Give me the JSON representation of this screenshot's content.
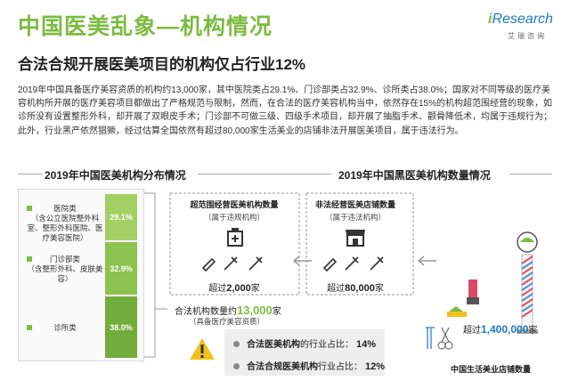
{
  "header": {
    "title": "中国医美乱象—机构情况",
    "subtitle": "合法合规开展医美项目的机构仅占行业12%"
  },
  "logo": {
    "brand_prefix": "i",
    "brand_main": "Research",
    "brand_cn": "艾瑞咨询"
  },
  "intro": {
    "paragraph": "2019年中国具备医疗美容资质的机构约13,000家，其中医院类占29.1%、门诊部类占32.9%、诊所类占38.0%；国家对不同等级的医疗美容机构所开展的医疗美容项目都做出了严格规范与限制，然而，在合法的医疗美容机构当中，依然存在15%的机构超范围经营的现象，如诊所没有设置整形外科，却开展了双眼皮手术；门诊部不可做三级、四级手术项目，却开展了抽脂手术、颧骨降低术，均属于违规行为；此外，行业黑产依然猖獗，经过估算全国依然有超过80,000家生活美业的店铺非法开展医美项目，属于违法行为。"
  },
  "left_section": {
    "title": "2019年中国医美机构分布情况",
    "categories": [
      {
        "label": "医院类",
        "sub": "（含公立医院整外科室、整形外科医院、医疗美容医院）",
        "pct_text": "29.1%",
        "value": 29.1
      },
      {
        "label": "门诊部类",
        "sub": "（含整形外科、皮肤美容）",
        "pct_text": "32.9%",
        "value": 32.9
      },
      {
        "label": "诊所类",
        "sub": "",
        "pct_text": "38.0%",
        "value": 38.0
      }
    ]
  },
  "middle": {
    "over_scope": {
      "title": "超范围经营医美机构数量",
      "note": "（属于违规机构）",
      "count_prefix": "超过",
      "count_value": "2,000",
      "count_unit": "家"
    },
    "illegal": {
      "title": "非法经营医美店铺数量",
      "note": "（属于违法机构）",
      "count_prefix": "超过",
      "count_value": "80,000",
      "count_unit": "家"
    },
    "legal": {
      "prefix": "合法机构数量约",
      "count_value": "13,000",
      "count_unit": "家",
      "note": "（具备医疗美容资质）"
    }
  },
  "stats": [
    {
      "bold": "合法医美机构",
      "rest": "的行业占比：",
      "value": "14%"
    },
    {
      "bold": "合法合规医美机构",
      "rest": "行业占比：",
      "value": "12%"
    }
  ],
  "right_section": {
    "title": "2019年中国黑医美机构数量情况",
    "beauty": {
      "prefix": "超过",
      "count_value": "1,400,000",
      "count_unit": "家",
      "caption": "中国生活美业店铺数量"
    }
  },
  "colors": {
    "green": "#7dbb42",
    "bar_light": "#a3d064",
    "bar_mid": "#8cc24f",
    "bar_dark": "#72ac3a",
    "accent_blue": "#1c7bbf",
    "warning_yellow": "#f1c21b"
  },
  "chart_data": {
    "type": "bar",
    "stacked": true,
    "orientation": "vertical",
    "title": "2019年中国医美机构分布情况",
    "categories": [
      "医院类",
      "门诊部类",
      "诊所类"
    ],
    "values": [
      29.1,
      32.9,
      38.0
    ],
    "unit": "%"
  }
}
